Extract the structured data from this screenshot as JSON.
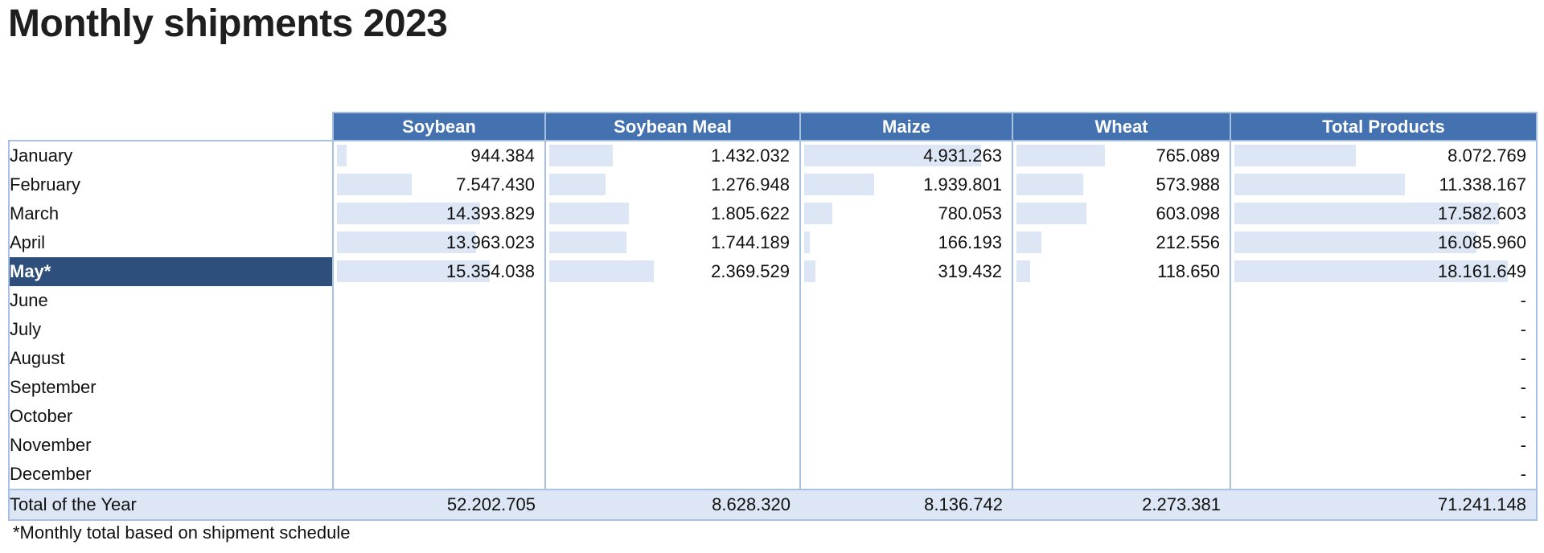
{
  "title": "Monthly shipments 2023",
  "footnote": "*Monthly total based on shipment schedule",
  "colors": {
    "header_bg": "#4472b1",
    "selected_bg": "#2e4f7c",
    "bar": "#dce6f4",
    "border": "#a9c1e0"
  },
  "chart_data": {
    "type": "table",
    "title": "Monthly shipments 2023",
    "columns": [
      "Soybean",
      "Soybean Meal",
      "Maize",
      "Wheat",
      "Total Products"
    ],
    "bar_max": [
      15354038,
      2369529,
      4931263,
      765089,
      18161649
    ],
    "rows": [
      {
        "label": "January",
        "cells": [
          "944.384",
          "1.432.032",
          "4.931.263",
          "765.089",
          "8.072.769"
        ],
        "values": [
          944384,
          1432032,
          4931263,
          765089,
          8072769
        ]
      },
      {
        "label": "February",
        "cells": [
          "7.547.430",
          "1.276.948",
          "1.939.801",
          "573.988",
          "11.338.167"
        ],
        "values": [
          7547430,
          1276948,
          1939801,
          573988,
          11338167
        ]
      },
      {
        "label": "March",
        "cells": [
          "14.393.829",
          "1.805.622",
          "780.053",
          "603.098",
          "17.582.603"
        ],
        "values": [
          14393829,
          1805622,
          780053,
          603098,
          17582603
        ]
      },
      {
        "label": "April",
        "cells": [
          "13.963.023",
          "1.744.189",
          "166.193",
          "212.556",
          "16.085.960"
        ],
        "values": [
          13963023,
          1744189,
          166193,
          212556,
          16085960
        ]
      },
      {
        "label": "May*",
        "selected": true,
        "cells": [
          "15.354.038",
          "2.369.529",
          "319.432",
          "118.650",
          "18.161.649"
        ],
        "values": [
          15354038,
          2369529,
          319432,
          118650,
          18161649
        ]
      },
      {
        "label": "June",
        "cells": [
          "",
          "",
          "",
          "",
          "-"
        ],
        "values": [
          null,
          null,
          null,
          null,
          null
        ]
      },
      {
        "label": "July",
        "cells": [
          "",
          "",
          "",
          "",
          "-"
        ],
        "values": [
          null,
          null,
          null,
          null,
          null
        ]
      },
      {
        "label": "August",
        "cells": [
          "",
          "",
          "",
          "",
          "-"
        ],
        "values": [
          null,
          null,
          null,
          null,
          null
        ]
      },
      {
        "label": "September",
        "cells": [
          "",
          "",
          "",
          "",
          "-"
        ],
        "values": [
          null,
          null,
          null,
          null,
          null
        ]
      },
      {
        "label": "October",
        "cells": [
          "",
          "",
          "",
          "",
          "-"
        ],
        "values": [
          null,
          null,
          null,
          null,
          null
        ]
      },
      {
        "label": "November",
        "cells": [
          "",
          "",
          "",
          "",
          "-"
        ],
        "values": [
          null,
          null,
          null,
          null,
          null
        ]
      },
      {
        "label": "December",
        "cells": [
          "",
          "",
          "",
          "",
          "-"
        ],
        "values": [
          null,
          null,
          null,
          null,
          null
        ]
      }
    ],
    "total": {
      "label": "Total of the Year",
      "cells": [
        "52.202.705",
        "8.628.320",
        "8.136.742",
        "2.273.381",
        "71.241.148"
      ]
    }
  }
}
